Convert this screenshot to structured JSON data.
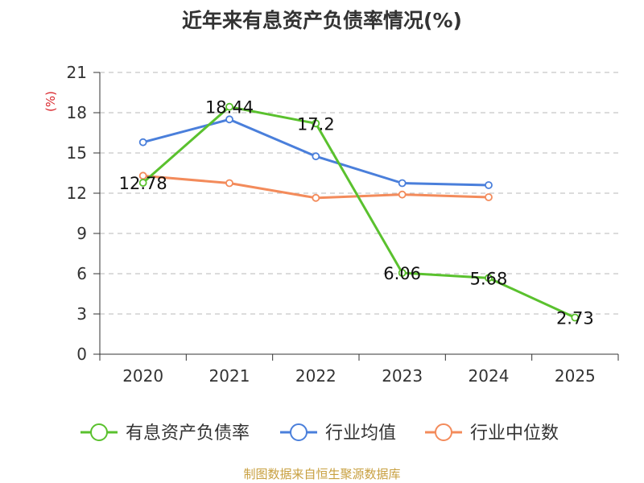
{
  "chart_data": {
    "type": "line",
    "title": "近年来有息资产负债率情况(%)",
    "ylabel": "(%)",
    "categories": [
      "2020",
      "2021",
      "2022",
      "2023",
      "2024",
      "2025"
    ],
    "ylim": [
      0,
      21
    ],
    "yticks": [
      0,
      3,
      6,
      9,
      12,
      15,
      18,
      21
    ],
    "grid": true,
    "legend_position": "bottom",
    "series": [
      {
        "name": "有息资产负债率",
        "color": "#5ac12e",
        "values": [
          12.78,
          18.44,
          17.2,
          6.06,
          5.68,
          2.73
        ],
        "labels": [
          "12.78",
          "18.44",
          "17.2",
          "6.06",
          "5.68",
          "2.73"
        ]
      },
      {
        "name": "行业均值",
        "color": "#4a7fdb",
        "values": [
          15.8,
          17.5,
          14.75,
          12.75,
          12.6,
          null
        ]
      },
      {
        "name": "行业中位数",
        "color": "#f38b5b",
        "values": [
          13.3,
          12.75,
          11.65,
          11.9,
          11.7,
          null
        ]
      }
    ],
    "source": "制图数据来自恒生聚源数据库"
  }
}
